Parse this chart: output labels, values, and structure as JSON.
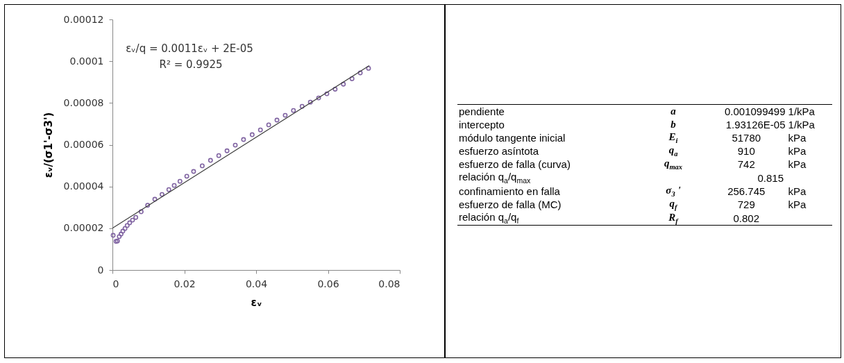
{
  "chart_data": [
    {
      "type": "scatter",
      "xlabel": "εᵥ",
      "ylabel": "εᵥ/(σ1'-σ3')",
      "xlim": [
        0,
        0.08
      ],
      "ylim": [
        0,
        0.00012
      ],
      "xticks": [
        0,
        0.02,
        0.04,
        0.06,
        0.08
      ],
      "yticks": [
        0,
        {
          "value": 2e-05,
          "label": "0.00002"
        },
        {
          "value": 4e-05,
          "label": "0.00004"
        },
        {
          "value": 6e-05,
          "label": "0.00006"
        },
        {
          "value": 8e-05,
          "label": "0.00008"
        },
        0.0001,
        0.00012
      ],
      "annotations": [
        "εᵥ/q = 0.0011εᵥ + 2E-05",
        "R² = 0.9925"
      ],
      "series": [
        {
          "marker": "circle",
          "color": "#8064a2",
          "x": [
            0.0002,
            0.001,
            0.0014,
            0.0019,
            0.0024,
            0.0029,
            0.0035,
            0.0041,
            0.0048,
            0.0056,
            0.0065,
            0.008,
            0.0098,
            0.0118,
            0.0138,
            0.0157,
            0.0172,
            0.0188,
            0.0207,
            0.0226,
            0.025,
            0.0273,
            0.0296,
            0.0319,
            0.0342,
            0.0365,
            0.0389,
            0.0412,
            0.0435,
            0.0458,
            0.0481,
            0.0504,
            0.0528,
            0.0551,
            0.0574,
            0.0597,
            0.062,
            0.0643,
            0.0667,
            0.069,
            0.0713
          ],
          "values": [
            1.66e-05,
            1.37e-05,
            1.39e-05,
            1.6e-05,
            1.72e-05,
            1.86e-05,
            1.99e-05,
            2.13e-05,
            2.26e-05,
            2.39e-05,
            2.52e-05,
            2.79e-05,
            3.1e-05,
            3.39e-05,
            3.62e-05,
            3.85e-05,
            4.05e-05,
            4.25e-05,
            4.49e-05,
            4.72e-05,
            4.99e-05,
            5.25e-05,
            5.48e-05,
            5.71e-05,
            5.98e-05,
            6.25e-05,
            6.48e-05,
            6.71e-05,
            6.95e-05,
            7.18e-05,
            7.41e-05,
            7.64e-05,
            7.84e-05,
            8.04e-05,
            8.24e-05,
            8.44e-05,
            8.66e-05,
            8.9e-05,
            9.16e-05,
            9.44e-05,
            9.66e-05
          ]
        },
        {
          "type": "line",
          "color": "#404040",
          "x": [
            0,
            0.0715
          ],
          "values": [
            2e-05,
            9.79e-05
          ]
        }
      ]
    },
    {
      "type": "other",
      "annotations": [
        "pendiente",
        "a",
        "0.001099499",
        "1/kPa",
        "intercepto",
        "b",
        "1.93126E-05",
        "1/kPa",
        "módulo tangente inicial",
        "E$_{i}$",
        "51780",
        "kPa",
        "esfuerzo asíntota",
        "q$_{a}$",
        "910",
        "kPa",
        "esfuerzo de falla (curva)",
        "q$_{max}$",
        "742",
        "kPa",
        "relación q$_{a}$/q$_{max}$",
        null,
        "0.815",
        null,
        "confinamiento en falla",
        "σ$_{3}$ '",
        "256.745",
        "kPa",
        "esfuerzo de falla (MC)",
        "q$_{f}$",
        "729",
        "kPa",
        "relación q$_{a}$/q$_{f}$",
        "R$_{f}$",
        "0.802",
        null
      ]
    }
  ]
}
